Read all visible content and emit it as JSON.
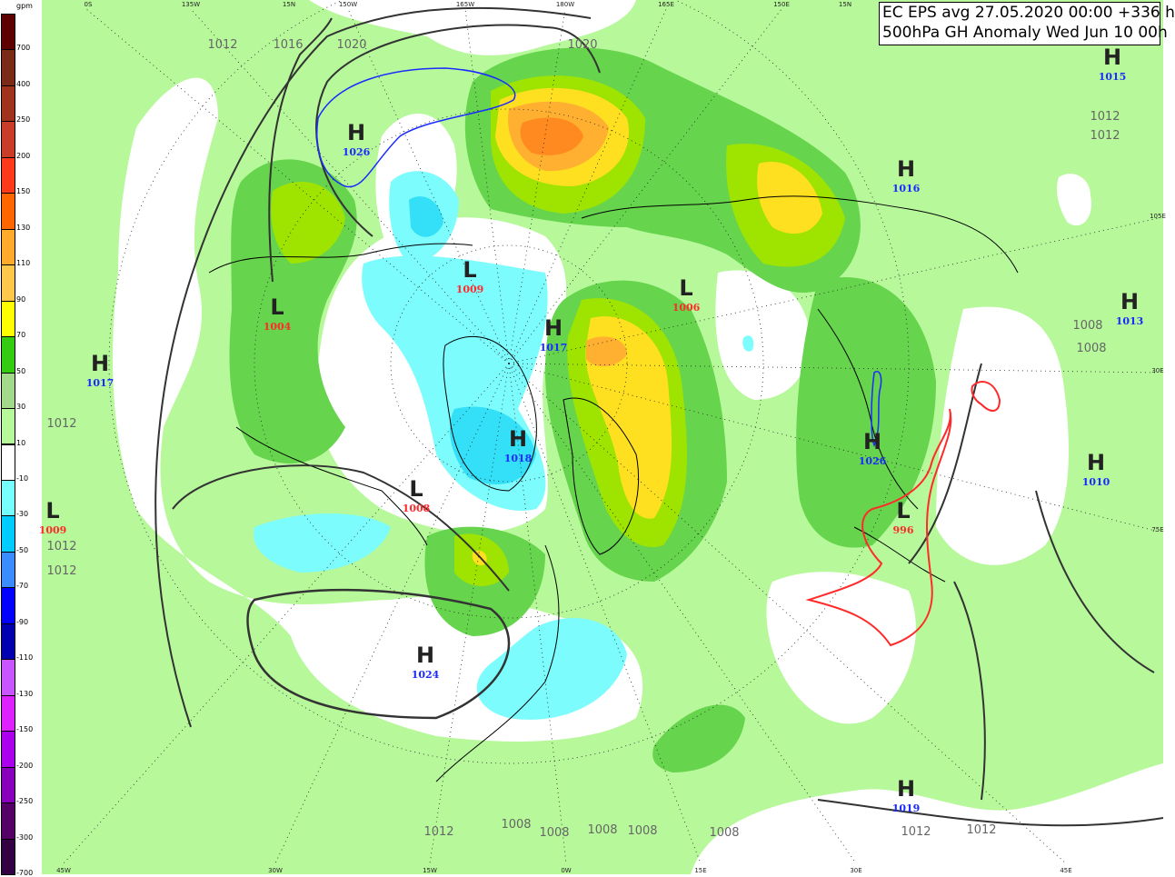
{
  "title": {
    "line1": "EC EPS avg 27.05.2020 00:00 +336 h",
    "line2": "500hPa GH Anomaly Wed Jun 10 00h"
  },
  "legend": {
    "unit": "gpm",
    "colors": [
      "#5f0000",
      "#7b2a18",
      "#a0321e",
      "#c83c28",
      "#ff3a1a",
      "#ff6600",
      "#ffaa2a",
      "#ffc84a",
      "#ffff00",
      "#33cc11",
      "#a3d98a",
      "#b6f89a",
      "#ffffff",
      "#77ffff",
      "#00ccff",
      "#3a8cff",
      "#0000ff",
      "#0000b0",
      "#c855ff",
      "#dd22ff",
      "#aa00ee",
      "#8800bb",
      "#550066",
      "#330044"
    ],
    "labels": [
      "700",
      "400",
      "250",
      "200",
      "150",
      "130",
      "110",
      "90",
      "70",
      "50",
      "30",
      "10",
      "-10",
      "-30",
      "-50",
      "-70",
      "-90",
      "-110",
      "-130",
      "-150",
      "-200",
      "-250",
      "-300",
      "-700"
    ]
  },
  "map": {
    "colors": {
      "base": "#b6f89a",
      "mid_green": "#66d44c",
      "lime": "#9ee400",
      "yellow": "#ffe020",
      "orange": "#ffb030",
      "dark_orange": "#ff8a20",
      "cyan": "#7cfcfc",
      "deep_cyan": "#33e0f8",
      "high_label": "#1a2bff",
      "low_label": "#ff2a2a",
      "isobar": "#333333"
    },
    "centers": [
      {
        "type": "H",
        "value": "1026",
        "kind": "high"
      },
      {
        "type": "L",
        "value": "1009",
        "kind": "low"
      },
      {
        "type": "L",
        "value": "1004",
        "kind": "low"
      },
      {
        "type": "H",
        "value": "1017",
        "kind": "high"
      },
      {
        "type": "L",
        "value": "1006",
        "kind": "low"
      },
      {
        "type": "H",
        "value": "1016",
        "kind": "high"
      },
      {
        "type": "H",
        "value": "1015",
        "kind": "high"
      },
      {
        "type": "H",
        "value": "1013",
        "kind": "high"
      },
      {
        "type": "H",
        "value": "1017",
        "kind": "high"
      },
      {
        "type": "H",
        "value": "1018",
        "kind": "high"
      },
      {
        "type": "L",
        "value": "1008",
        "kind": "low"
      },
      {
        "type": "L",
        "value": "1009",
        "kind": "low"
      },
      {
        "type": "H",
        "value": "1026",
        "kind": "high"
      },
      {
        "type": "L",
        "value": "996",
        "kind": "low"
      },
      {
        "type": "H",
        "value": "1010",
        "kind": "high"
      },
      {
        "type": "H",
        "value": "1024",
        "kind": "high"
      },
      {
        "type": "H",
        "value": "1019",
        "kind": "high"
      }
    ],
    "isobar_labels": [
      "1012",
      "1016",
      "1020",
      "1020",
      "1008",
      "1008",
      "1012",
      "1012",
      "1012",
      "1012",
      "1012",
      "1012",
      "1008",
      "1008",
      "1008",
      "1008",
      "1008",
      "1012",
      "1012"
    ],
    "grid_labels": [
      "0S",
      "135W",
      "15N",
      "150W",
      "165W",
      "180W",
      "165E",
      "150E",
      "15N",
      "45W",
      "30W",
      "15W",
      "0W",
      "15E",
      "30E",
      "45E",
      "105E",
      "30E",
      "75E"
    ]
  }
}
